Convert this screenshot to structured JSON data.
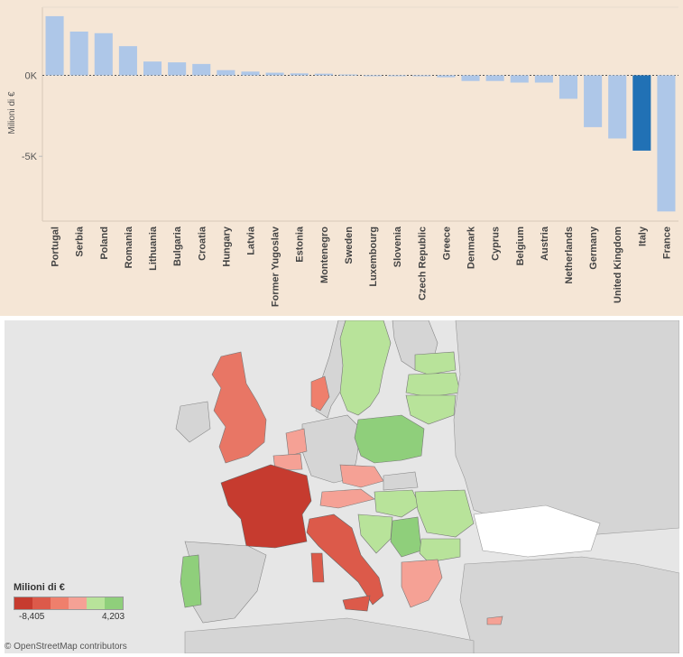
{
  "chart_data": {
    "type": "bar",
    "ylabel": "Milioni di €",
    "y_ticks": [
      {
        "value": 0,
        "label": "0K"
      },
      {
        "value": -5000,
        "label": "-5K"
      }
    ],
    "ylim": [
      -9000,
      4203
    ],
    "highlight_color": "#2171b5",
    "bar_color": "#aec7e8",
    "highlight_category": "Italy",
    "categories": [
      "Portugal",
      "Serbia",
      "Poland",
      "Romania",
      "Lithuania",
      "Bulgaria",
      "Croatia",
      "Hungary",
      "Latvia",
      "Former Yugoslav",
      "Estonia",
      "Montenegro",
      "Sweden",
      "Luxembourg",
      "Slovenia",
      "Czech Republic",
      "Greece",
      "Denmark",
      "Cyprus",
      "Belgium",
      "Austria",
      "Netherlands",
      "Germany",
      "United Kingdom",
      "Italy",
      "France"
    ],
    "values": [
      3650,
      2700,
      2600,
      1800,
      850,
      800,
      700,
      320,
      230,
      160,
      120,
      100,
      50,
      -40,
      -50,
      -60,
      -120,
      -350,
      -350,
      -450,
      -450,
      -1450,
      -3200,
      -3900,
      -4650,
      -8405
    ]
  },
  "map": {
    "legend_title": "Milioni di €",
    "legend_min": "-8,405",
    "legend_max": "4,203",
    "legend_colors": [
      "#c63b2f",
      "#dc5a4a",
      "#ef7f6c",
      "#f5a195",
      "#b8e39a",
      "#8fcf7b"
    ],
    "attribution": "© OpenStreetMap contributors"
  }
}
